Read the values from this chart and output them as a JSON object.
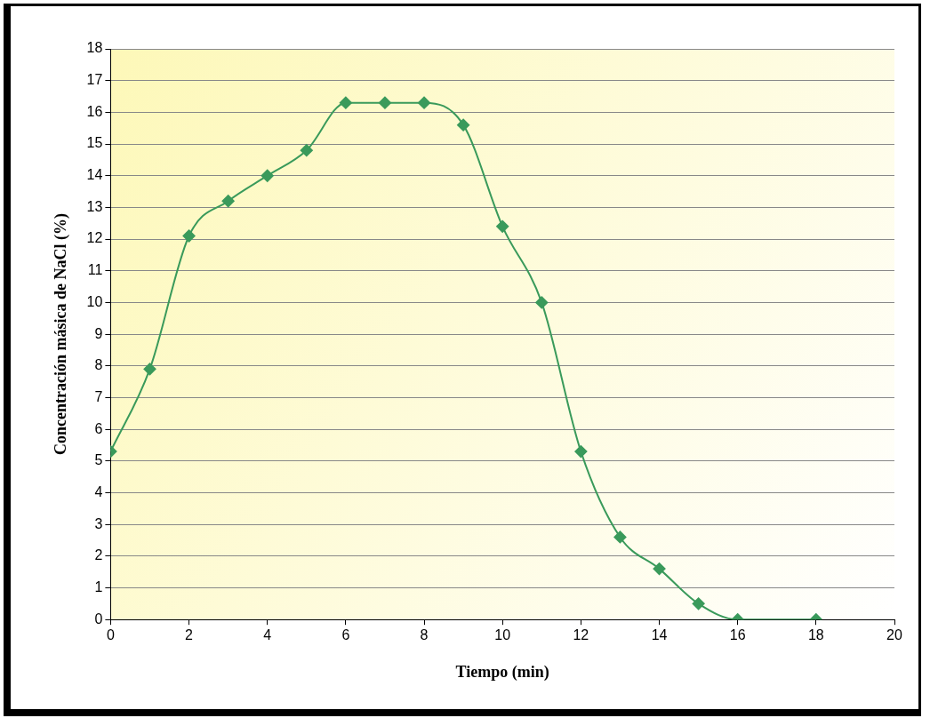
{
  "chart_data": {
    "type": "line",
    "xlabel": "Tiempo (min)",
    "ylabel": "Concentración másica de NaCl (%)",
    "x": [
      0,
      1,
      2,
      3,
      4,
      5,
      6,
      7,
      8,
      9,
      10,
      11,
      12,
      13,
      14,
      15,
      16,
      18
    ],
    "series": [
      {
        "color": "#3a9a5b",
        "values": [
          5.3,
          7.9,
          12.1,
          13.2,
          14.0,
          14.8,
          16.3,
          16.3,
          16.3,
          15.6,
          12.4,
          10.0,
          5.3,
          2.6,
          1.6,
          0.5,
          0,
          0
        ]
      }
    ],
    "xlim": [
      0,
      20
    ],
    "xticks": [
      0,
      2,
      4,
      6,
      8,
      10,
      12,
      14,
      16,
      18,
      20
    ],
    "ylim": [
      0,
      18
    ],
    "yticks": [
      0,
      1,
      2,
      3,
      4,
      5,
      6,
      7,
      8,
      9,
      10,
      11,
      12,
      13,
      14,
      15,
      16,
      17,
      18
    ],
    "grid": "y",
    "legend": false,
    "marker": "diamond",
    "line_style": "solid"
  }
}
